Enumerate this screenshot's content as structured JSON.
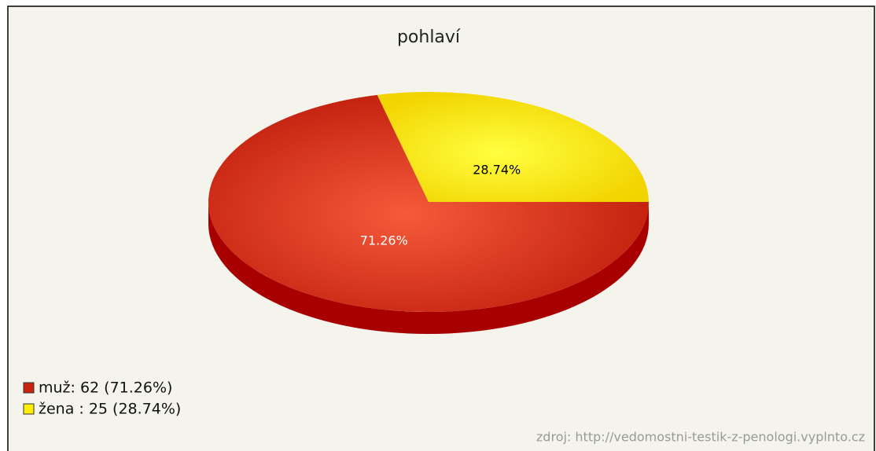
{
  "chart_data": {
    "type": "pie",
    "title": "pohlaví",
    "categories": [
      "muž: 62 (71.26%)",
      "žena : 25 (28.74%)"
    ],
    "values": [
      71.26,
      28.74
    ],
    "value_labels": [
      "71.26%",
      "28.74%"
    ],
    "colors": [
      "#c8240e",
      "#ffee00"
    ],
    "label_colors": [
      "#ffffff",
      "#000000"
    ],
    "source": "zdroj: http://vedomostni-testik-z-penologi.vyplnto.cz"
  }
}
